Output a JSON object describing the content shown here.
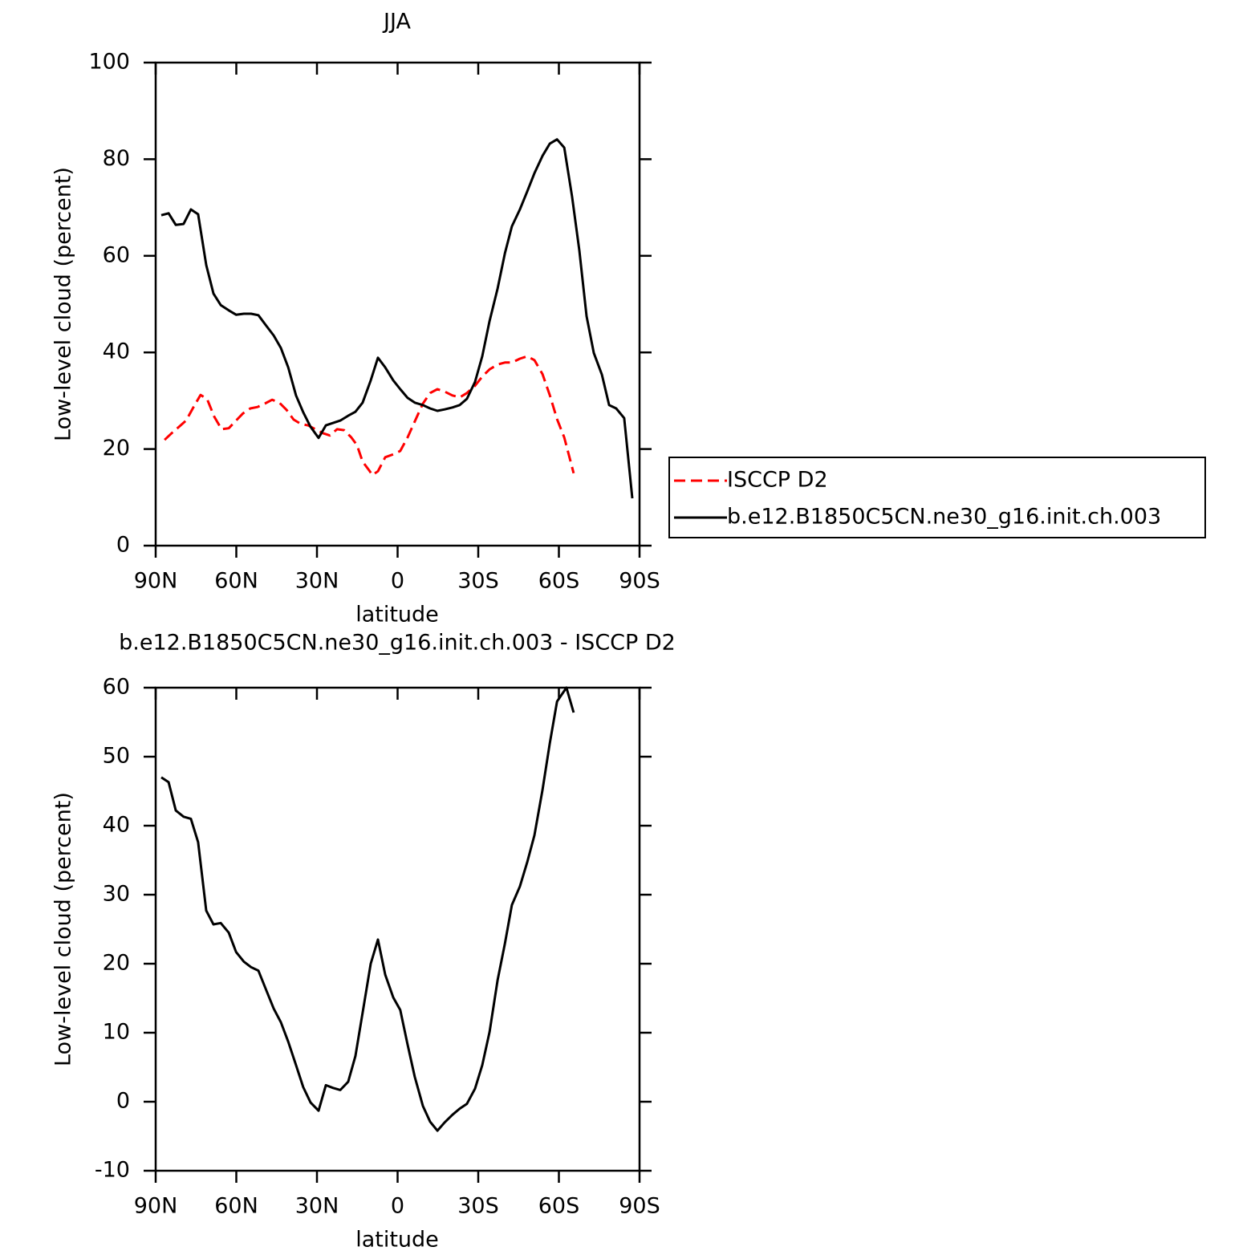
{
  "chart_data": [
    {
      "type": "line",
      "title": "JJA",
      "xlabel": "latitude",
      "ylabel": "Low-level cloud (percent)",
      "xlim": [
        90,
        -90
      ],
      "xticks": [
        {
          "value": 90,
          "label": "90N"
        },
        {
          "value": 60,
          "label": "60N"
        },
        {
          "value": 30,
          "label": "30N"
        },
        0,
        {
          "value": -30,
          "label": "30S"
        },
        {
          "value": -60,
          "label": "60S"
        },
        {
          "value": -90,
          "label": "90S"
        }
      ],
      "ylim": [
        0,
        100
      ],
      "yticks": [
        0,
        20,
        40,
        60,
        80,
        100
      ],
      "legend": "outside-right",
      "series": [
        {
          "name": "ISCCP D2",
          "color": "#ff0000",
          "linestyle": "dashed",
          "x": [
            86.7,
            84.0,
            81.3,
            78.7,
            75.7,
            73.3,
            70.9,
            68.2,
            65.5,
            62.8,
            60.1,
            57.5,
            54.8,
            52.1,
            49.4,
            46.7,
            44.0,
            41.3,
            38.7,
            36.0,
            33.3,
            30.6,
            27.9,
            25.2,
            22.5,
            19.9,
            17.2,
            15.1,
            13.0,
            10.6,
            9.4,
            7.3,
            4.6,
            1.6,
            -1.0,
            -3.7,
            -6.4,
            -9.4,
            -12.1,
            -14.8,
            -17.5,
            -20.4,
            -23.1,
            -25.8,
            -28.8,
            -31.5,
            -34.2,
            -37.2,
            -39.9,
            -42.5,
            -45.5,
            -48.2,
            -50.9,
            -53.9,
            -56.6,
            -59.3,
            -62.0,
            -65.5
          ],
          "values": [
            21.9,
            23.3,
            24.6,
            25.9,
            28.9,
            31.2,
            30.4,
            26.7,
            24.1,
            24.3,
            25.9,
            27.4,
            28.4,
            28.7,
            29.4,
            30.2,
            29.6,
            28.1,
            26.1,
            25.2,
            24.9,
            24.1,
            23.3,
            22.8,
            24.1,
            23.9,
            22.4,
            20.8,
            17.4,
            15.6,
            14.6,
            15.4,
            18.3,
            18.9,
            19.6,
            22.4,
            25.7,
            29.4,
            31.6,
            32.4,
            31.9,
            31.1,
            30.7,
            31.6,
            33.1,
            35.0,
            36.5,
            37.5,
            37.9,
            37.9,
            38.7,
            39.2,
            38.4,
            35.5,
            31.2,
            26.2,
            22.4,
            15.0
          ]
        },
        {
          "name": "b.e12.B1850C5CN.ne30_g16.init.ch.003",
          "color": "#000000",
          "linestyle": "solid",
          "x": [
            87.9,
            85.2,
            82.5,
            79.6,
            76.9,
            74.2,
            71.2,
            68.5,
            65.8,
            62.8,
            60.1,
            57.2,
            54.5,
            51.8,
            49.1,
            46.1,
            43.4,
            40.7,
            37.8,
            35.1,
            32.4,
            29.4,
            26.7,
            24.0,
            21.3,
            18.4,
            15.7,
            13.0,
            10.0,
            7.3,
            4.6,
            1.6,
            -1.0,
            -3.7,
            -6.4,
            -9.4,
            -12.1,
            -14.8,
            -17.5,
            -20.4,
            -23.1,
            -25.8,
            -28.8,
            -31.5,
            -34.2,
            -37.2,
            -39.9,
            -42.5,
            -45.5,
            -48.2,
            -50.9,
            -53.9,
            -56.6,
            -59.3,
            -62.0,
            -64.9,
            -67.6,
            -70.3,
            -73.0,
            -76.0,
            -78.7,
            -81.3,
            -84.3,
            -87.3
          ],
          "values": [
            68.4,
            68.8,
            66.4,
            66.6,
            69.6,
            68.6,
            58.1,
            52.2,
            49.8,
            48.7,
            47.8,
            48.0,
            48.0,
            47.7,
            45.7,
            43.5,
            40.9,
            36.9,
            31.1,
            27.6,
            24.6,
            22.3,
            24.9,
            25.4,
            25.9,
            26.9,
            27.7,
            29.6,
            34.2,
            38.9,
            36.9,
            34.2,
            32.4,
            30.6,
            29.6,
            29.1,
            28.4,
            27.9,
            28.2,
            28.6,
            29.1,
            30.4,
            33.9,
            39.2,
            46.5,
            53.2,
            60.5,
            66.1,
            69.6,
            73.3,
            77.1,
            80.7,
            83.2,
            84.1,
            82.4,
            72.3,
            61.1,
            47.5,
            39.9,
            35.4,
            29.1,
            28.4,
            26.4,
            9.8
          ]
        }
      ]
    },
    {
      "type": "line",
      "title": "b.e12.B1850C5CN.ne30_g16.init.ch.003 - ISCCP D2",
      "xlabel": "latitude",
      "ylabel": "Low-level cloud (percent)",
      "xlim": [
        90,
        -90
      ],
      "xticks": [
        {
          "value": 90,
          "label": "90N"
        },
        {
          "value": 60,
          "label": "60N"
        },
        {
          "value": 30,
          "label": "30N"
        },
        0,
        {
          "value": -30,
          "label": "30S"
        },
        {
          "value": -60,
          "label": "60S"
        },
        {
          "value": -90,
          "label": "90S"
        }
      ],
      "ylim": [
        -10,
        60
      ],
      "yticks": [
        -10,
        0,
        10,
        20,
        30,
        40,
        50,
        60
      ],
      "series": [
        {
          "color": "#000000",
          "linestyle": "solid",
          "x": [
            87.9,
            85.2,
            82.5,
            79.6,
            76.9,
            74.2,
            71.2,
            68.5,
            65.8,
            62.8,
            60.1,
            57.2,
            54.5,
            51.8,
            49.1,
            46.1,
            43.4,
            40.7,
            37.8,
            35.1,
            32.4,
            29.4,
            26.7,
            24.0,
            21.3,
            18.4,
            15.7,
            13.0,
            10.0,
            7.3,
            4.6,
            1.6,
            -1.0,
            -3.7,
            -6.4,
            -9.4,
            -12.1,
            -14.8,
            -17.5,
            -20.4,
            -23.1,
            -25.8,
            -28.8,
            -31.5,
            -34.2,
            -37.2,
            -39.9,
            -42.5,
            -45.5,
            -48.2,
            -50.9,
            -53.9,
            -56.6,
            -59.3,
            -62.8,
            -65.5
          ],
          "values": [
            47.0,
            46.3,
            42.2,
            41.3,
            41.0,
            37.6,
            27.7,
            25.7,
            25.9,
            24.5,
            21.7,
            20.3,
            19.5,
            19.0,
            16.4,
            13.5,
            11.5,
            8.7,
            5.3,
            2.1,
            -0.1,
            -1.3,
            2.4,
            2.0,
            1.7,
            2.9,
            6.6,
            12.9,
            20.0,
            23.5,
            18.4,
            15.1,
            13.3,
            8.3,
            3.6,
            -0.6,
            -2.9,
            -4.2,
            -3.0,
            -1.9,
            -1.0,
            -0.3,
            1.9,
            5.3,
            10.1,
            17.6,
            22.9,
            28.5,
            31.2,
            34.7,
            38.6,
            45.2,
            51.9,
            58.0,
            60.0,
            56.4
          ]
        }
      ]
    }
  ]
}
